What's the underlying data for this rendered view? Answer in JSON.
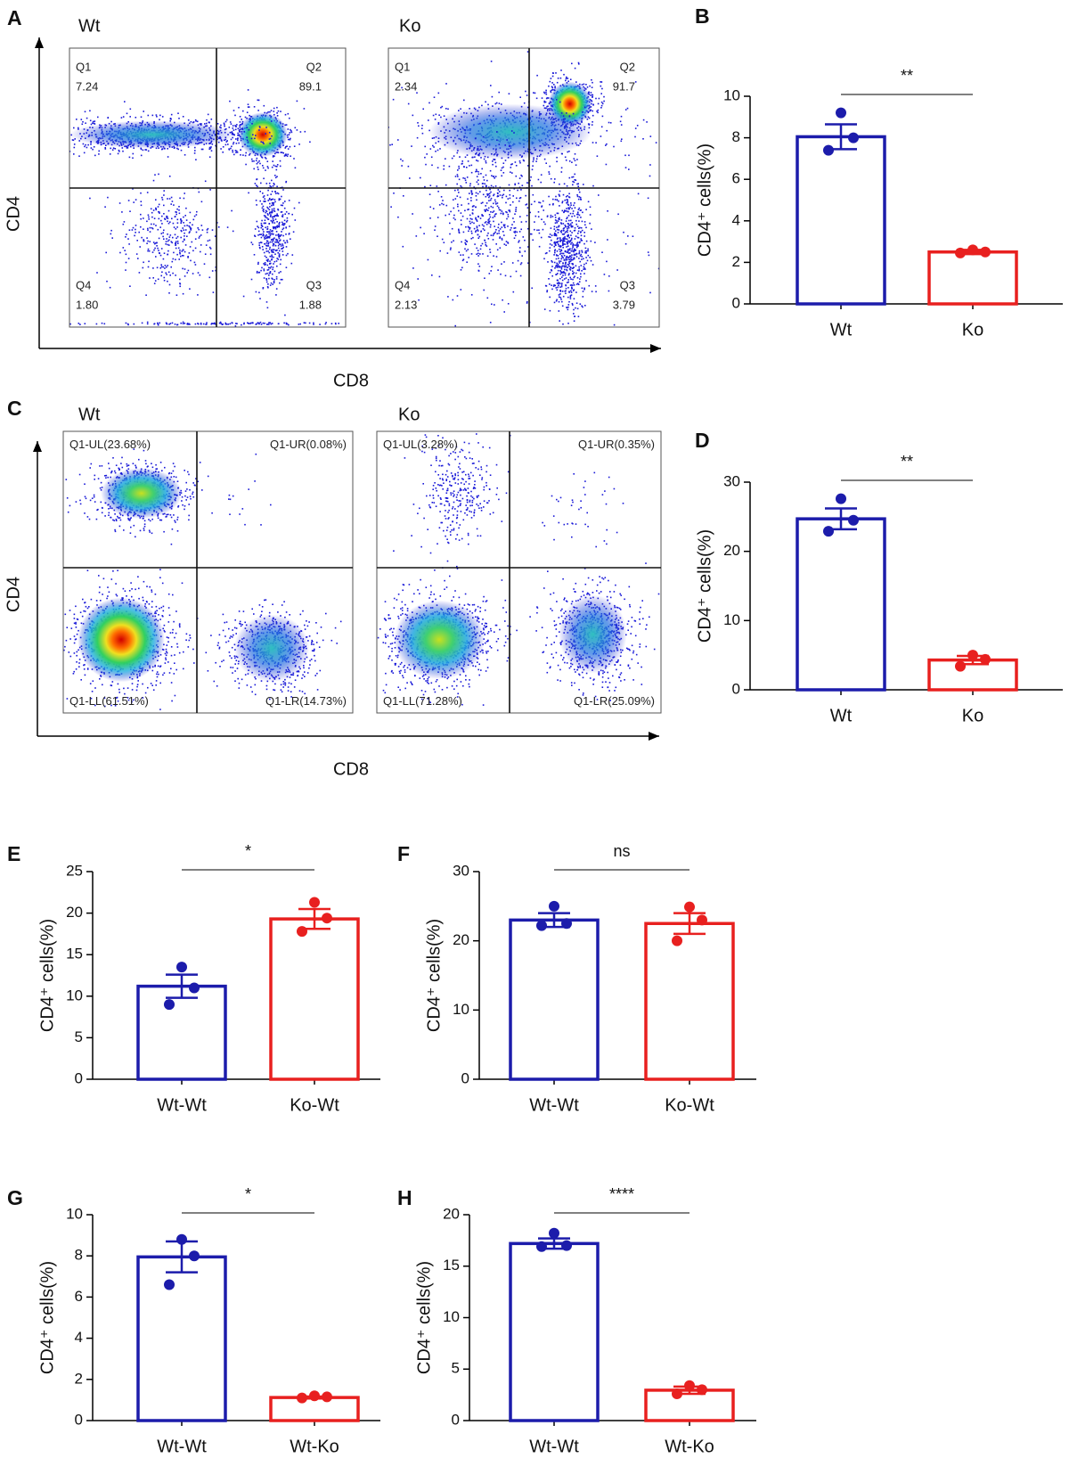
{
  "chart_data": [
    {
      "type": "flow",
      "panel": "A",
      "xlabel": "CD8",
      "ylabel": "CD4",
      "plots": [
        {
          "title": "Wt",
          "quadrants": [
            {
              "name": "Q1",
              "value": 7.24
            },
            {
              "name": "Q2",
              "value": 89.1
            },
            {
              "name": "Q3",
              "value": 1.88
            },
            {
              "name": "Q4",
              "value": 1.8,
              "value_label": "1.80"
            }
          ]
        },
        {
          "title": "Ko",
          "quadrants": [
            {
              "name": "Q1",
              "value": 2.34
            },
            {
              "name": "Q2",
              "value": 91.7
            },
            {
              "name": "Q3",
              "value": 3.79
            },
            {
              "name": "Q4",
              "value": 2.13
            }
          ]
        }
      ]
    },
    {
      "type": "bar",
      "panel": "B",
      "ylabel": "CD4⁺ cells(%)",
      "categories": [
        "Wt",
        "Ko"
      ],
      "colors": [
        "#1c1cab",
        "#e8201f"
      ],
      "values": [
        8.05,
        2.5
      ],
      "errors": [
        0.6,
        0.1
      ],
      "points": [
        [
          9.2,
          8.0,
          7.4
        ],
        [
          2.6,
          2.5,
          2.45
        ]
      ],
      "significance": "**",
      "ylim": [
        0,
        10
      ],
      "yticks": [
        0,
        2,
        4,
        6,
        8,
        10
      ]
    },
    {
      "type": "flow",
      "panel": "C",
      "xlabel": "CD8",
      "ylabel": "CD4",
      "plots": [
        {
          "title": "Wt",
          "quadrants": [
            {
              "name": "Q1-UL",
              "value": 23.68,
              "value_label": "(23.68%)"
            },
            {
              "name": "Q1-UR",
              "value": 0.08,
              "value_label": "(0.08%)"
            },
            {
              "name": "Q1-LR",
              "value": 14.73,
              "value_label": "(14.73%)"
            },
            {
              "name": "Q1-LL",
              "value": 61.51,
              "value_label": "(61.51%)"
            }
          ]
        },
        {
          "title": "Ko",
          "quadrants": [
            {
              "name": "Q1-UL",
              "value": 3.28,
              "value_label": "(3.28%)"
            },
            {
              "name": "Q1-UR",
              "value": 0.35,
              "value_label": "(0.35%)"
            },
            {
              "name": "Q1-LR",
              "value": 25.09,
              "value_label": "(25.09%)"
            },
            {
              "name": "Q1-LL",
              "value": 71.28,
              "value_label": "(71.28%)"
            }
          ]
        }
      ]
    },
    {
      "type": "bar",
      "panel": "D",
      "ylabel": "CD4⁺ cells(%)",
      "categories": [
        "Wt",
        "Ko"
      ],
      "colors": [
        "#1c1cab",
        "#e8201f"
      ],
      "values": [
        24.7,
        4.3
      ],
      "errors": [
        1.5,
        0.6
      ],
      "points": [
        [
          27.6,
          24.5,
          22.9
        ],
        [
          5.0,
          4.4,
          3.4
        ]
      ],
      "significance": "**",
      "ylim": [
        0,
        30
      ],
      "yticks": [
        0,
        10,
        20,
        30
      ]
    },
    {
      "type": "bar",
      "panel": "E",
      "ylabel": "CD4⁺ cells(%)",
      "categories": [
        "Wt-Wt",
        "Ko-Wt"
      ],
      "colors": [
        "#1c1cab",
        "#e8201f"
      ],
      "values": [
        11.2,
        19.3
      ],
      "errors": [
        1.4,
        1.2
      ],
      "points": [
        [
          13.5,
          11.0,
          9.0
        ],
        [
          21.3,
          19.4,
          17.8
        ]
      ],
      "significance": "*",
      "ylim": [
        0,
        25
      ],
      "yticks": [
        0,
        5,
        10,
        15,
        20,
        25
      ]
    },
    {
      "type": "bar",
      "panel": "F",
      "ylabel": "CD4⁺ cells(%)",
      "categories": [
        "Wt-Wt",
        "Ko-Wt"
      ],
      "colors": [
        "#1c1cab",
        "#e8201f"
      ],
      "values": [
        23.0,
        22.5
      ],
      "errors": [
        1.0,
        1.5
      ],
      "points": [
        [
          25.0,
          22.5,
          22.2
        ],
        [
          24.9,
          23.0,
          20.0
        ]
      ],
      "significance": "ns",
      "ylim": [
        0,
        30
      ],
      "yticks": [
        0,
        10,
        20,
        30
      ]
    },
    {
      "type": "bar",
      "panel": "G",
      "ylabel": "CD4⁺ cells(%)",
      "categories": [
        "Wt-Wt",
        "Wt-Ko"
      ],
      "colors": [
        "#1c1cab",
        "#e8201f"
      ],
      "values": [
        7.95,
        1.12
      ],
      "errors": [
        0.75,
        0.05
      ],
      "points": [
        [
          8.8,
          8.0,
          6.6
        ],
        [
          1.2,
          1.15,
          1.1
        ]
      ],
      "significance": "*",
      "ylim": [
        0,
        10
      ],
      "yticks": [
        0,
        2,
        4,
        6,
        8,
        10
      ]
    },
    {
      "type": "bar",
      "panel": "H",
      "ylabel": "CD4⁺ cells(%)",
      "categories": [
        "Wt-Wt",
        "Wt-Ko"
      ],
      "colors": [
        "#1c1cab",
        "#e8201f"
      ],
      "values": [
        17.2,
        2.95
      ],
      "errors": [
        0.5,
        0.35
      ],
      "points": [
        [
          18.2,
          17.0,
          16.9
        ],
        [
          3.4,
          3.0,
          2.6
        ]
      ],
      "significance": "****",
      "ylim": [
        0,
        20
      ],
      "yticks": [
        0,
        5,
        10,
        15,
        20
      ]
    }
  ]
}
